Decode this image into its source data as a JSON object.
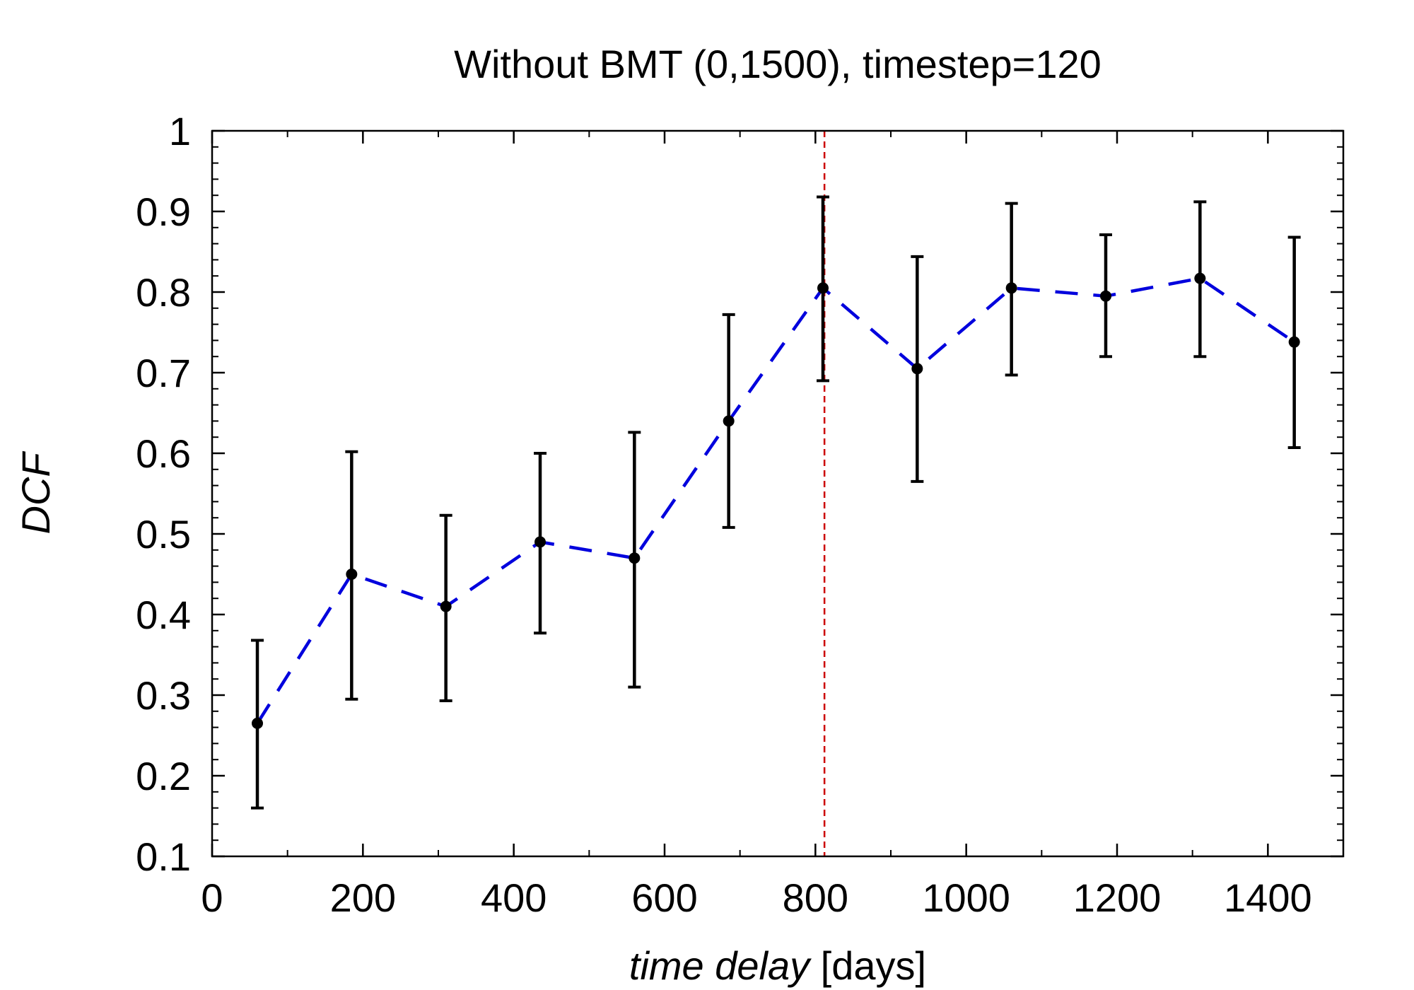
{
  "chart_data": {
    "type": "line",
    "title": "Without BMT (0,1500), timestep=120",
    "xlabel_italic": "time delay",
    "xlabel_unit": " [days]",
    "ylabel": "DCF",
    "xlim": [
      0,
      1500
    ],
    "ylim": [
      0.1,
      1.0
    ],
    "x_ticks": [
      0,
      200,
      400,
      600,
      800,
      1000,
      1200,
      1400
    ],
    "x_tick_labels": [
      "0",
      "200",
      "400",
      "600",
      "800",
      "1000",
      "1200",
      "1400"
    ],
    "x_minor_step": 100,
    "y_ticks": [
      0.1,
      0.2,
      0.3,
      0.4,
      0.5,
      0.6,
      0.7,
      0.8,
      0.9,
      1.0
    ],
    "y_tick_labels": [
      "0.1",
      "0.2",
      "0.3",
      "0.4",
      "0.5",
      "0.6",
      "0.7",
      "0.8",
      "0.9",
      "1"
    ],
    "y_minor_step": 0.02,
    "grid": false,
    "series": [
      {
        "name": "DCF",
        "line_color": "#0000dd",
        "line_style": "dashed",
        "marker_color": "#000000",
        "x": [
          60,
          185,
          310,
          435,
          560,
          685,
          810,
          935,
          1060,
          1185,
          1310,
          1435
        ],
        "y": [
          0.265,
          0.45,
          0.41,
          0.49,
          0.47,
          0.64,
          0.805,
          0.705,
          0.805,
          0.795,
          0.817,
          0.738
        ],
        "err_low": [
          0.16,
          0.295,
          0.293,
          0.377,
          0.31,
          0.508,
          0.69,
          0.565,
          0.697,
          0.72,
          0.72,
          0.607
        ],
        "err_high": [
          0.368,
          0.602,
          0.523,
          0.6,
          0.626,
          0.772,
          0.918,
          0.844,
          0.91,
          0.871,
          0.912,
          0.868
        ]
      }
    ],
    "vline": {
      "x": 812,
      "color": "#cc0000",
      "style": "dashed"
    }
  }
}
